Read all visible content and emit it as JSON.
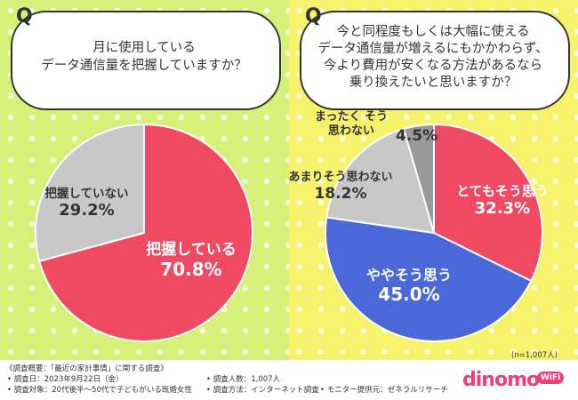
{
  "chart_data": [
    {
      "type": "pie",
      "question_mark": "Q",
      "question_lines": [
        "月に使用している",
        "データ通信量を把握していますか？"
      ],
      "slices": [
        {
          "label": "把握している",
          "value": "70.8%",
          "pct": 70.8,
          "color": "#f04a63"
        },
        {
          "label": "把握していない",
          "value": "29.2%",
          "pct": 29.2,
          "color": "#c8c8c8"
        }
      ]
    },
    {
      "type": "pie",
      "question_mark": "Q",
      "question_lines": [
        "今と同程度もしくは大幅に使える",
        "データ通信量が増えるにもかかわらず、",
        "今より費用が安くなる方法があるなら",
        "乗り換えたいと思いますか？"
      ],
      "slices": [
        {
          "label": "とてもそう思う",
          "value": "32.3%",
          "pct": 32.3,
          "color": "#f04a63"
        },
        {
          "label": "ややそう思う",
          "value": "45.0%",
          "pct": 45.0,
          "color": "#4a68d8"
        },
        {
          "label": "あまりそう思わない",
          "value": "18.2%",
          "pct": 18.2,
          "color": "#c8c8c8"
        },
        {
          "label": "まったく そう思わない",
          "value": "4.5%",
          "pct": 4.5,
          "color": "#999999"
        }
      ],
      "sample_note": "(n=1,007人)"
    }
  ],
  "footer": {
    "line1": "《調査概要：「最近の家計事情」に関する調査》",
    "line2": "• 調査日：2023年9月22日（金）",
    "line3": "• 調査対象：20代後半～50代で子どもがいる既婚女性",
    "line4": "• 調査人数：1,007人",
    "line5": "• 調査方法：インターネット調査",
    "line6": "• モニター提供元：ゼネラルリサーチ",
    "logo": "dinomo",
    "logo_badge": "WiFi"
  }
}
